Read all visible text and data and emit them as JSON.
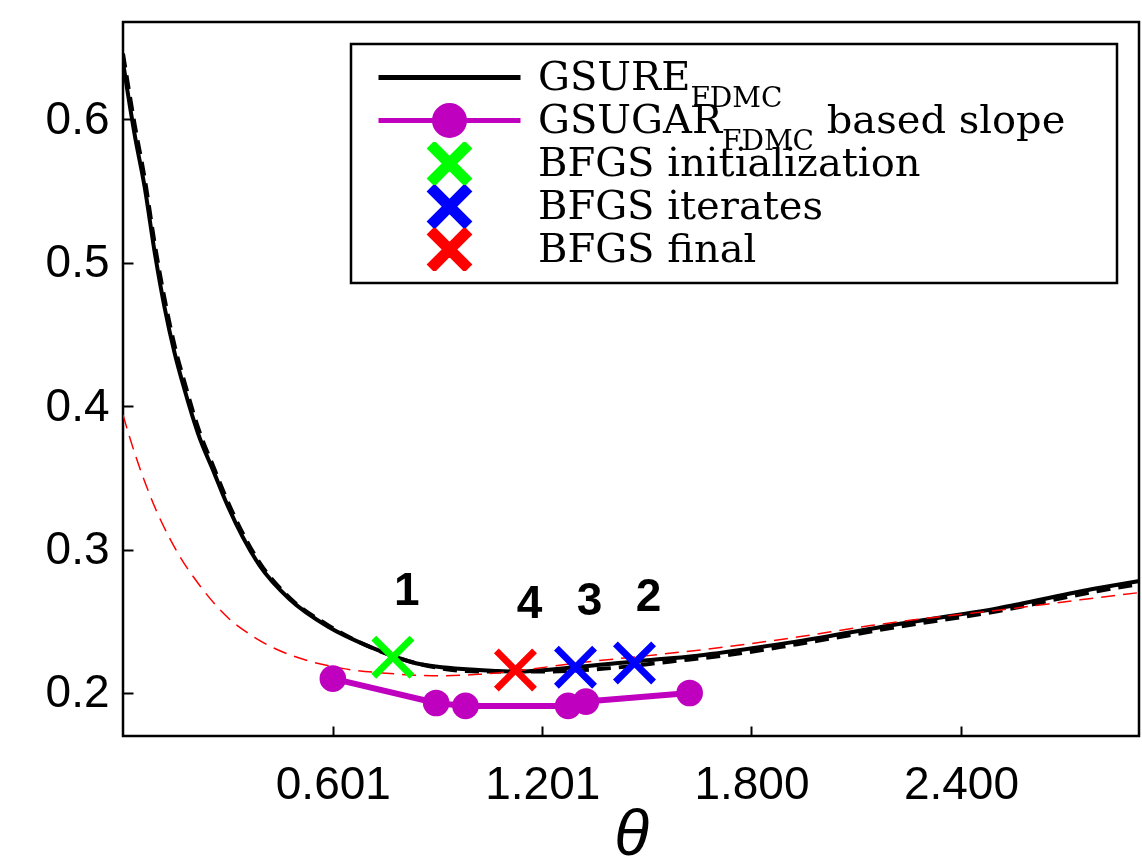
{
  "chart_data": {
    "type": "line",
    "xlabel": "θ",
    "xlim": [
      0,
      2.91
    ],
    "ylim": [
      0.17,
      0.668
    ],
    "xticks": [
      0.601,
      1.201,
      {
        "value": 1.8,
        "label": "1.800"
      },
      {
        "value": 2.4,
        "label": "2.400"
      }
    ],
    "yticks": [
      0.2,
      0.3,
      0.4,
      0.5,
      0.6
    ],
    "legend": "top right",
    "series": [
      {
        "name": "GSURE$_{FDMC}$",
        "color": "#000000",
        "line_style": "solid",
        "x": [
          0,
          0.033,
          0.062,
          0.091,
          0.119,
          0.148,
          0.177,
          0.215,
          0.262,
          0.292,
          0.391,
          0.479,
          0.589,
          0.699,
          0.853,
          1.018,
          1.128,
          1.296,
          1.465,
          1.645,
          1.931,
          2.217,
          2.504,
          2.79,
          2.91
        ],
        "values": [
          0.64,
          0.59,
          0.553,
          0.507,
          0.469,
          0.437,
          0.411,
          0.381,
          0.353,
          0.335,
          0.289,
          0.265,
          0.246,
          0.233,
          0.22,
          0.216,
          0.215,
          0.218,
          0.222,
          0.226,
          0.236,
          0.248,
          0.259,
          0.273,
          0.278
        ]
      },
      {
        "color": "#000000",
        "line_style": "dashed",
        "x": [
          0,
          0.033,
          0.062,
          0.091,
          0.119,
          0.148,
          0.177,
          0.215,
          0.262,
          0.292,
          0.391,
          0.479,
          0.589,
          0.699,
          0.853,
          1.018,
          1.21,
          1.38,
          1.57,
          1.72,
          1.931,
          2.217,
          2.504,
          2.79,
          2.91
        ],
        "values": [
          0.646,
          0.597,
          0.559,
          0.513,
          0.475,
          0.442,
          0.416,
          0.385,
          0.356,
          0.338,
          0.291,
          0.266,
          0.247,
          0.233,
          0.22,
          0.215,
          0.215,
          0.217,
          0.222,
          0.226,
          0.234,
          0.246,
          0.257,
          0.271,
          0.276
        ]
      },
      {
        "color": "#ff0000",
        "line_style": "dashed",
        "x": [
          0,
          0.017,
          0.082,
          0.149,
          0.226,
          0.303,
          0.369,
          0.435,
          0.523,
          0.632,
          0.743,
          0.908,
          1.018,
          1.34,
          1.54,
          1.722,
          1.931,
          2.141,
          2.265,
          2.551,
          2.742,
          2.91
        ],
        "values": [
          0.394,
          0.38,
          0.335,
          0.301,
          0.273,
          0.252,
          0.24,
          0.231,
          0.223,
          0.217,
          0.214,
          0.212,
          0.213,
          0.222,
          0.227,
          0.232,
          0.239,
          0.247,
          0.251,
          0.259,
          0.265,
          0.27
        ]
      },
      {
        "name": "GSUGAR$_{FDMC}$ based slope",
        "color": "#bf00bf",
        "marker": "circle",
        "x": [
          0.601,
          0.897,
          0.981,
          1.275,
          1.326,
          1.623
        ],
        "values": [
          0.21,
          0.193,
          0.191,
          0.191,
          0.194,
          0.2
        ]
      },
      {
        "name": "BFGS initialization",
        "type": "scatter",
        "color": "#00ff00",
        "marker": "cross",
        "x": [
          0.773
        ],
        "values": [
          0.225
        ]
      },
      {
        "name": "BFGS iterates",
        "type": "scatter",
        "color": "#0000ff",
        "marker": "cross",
        "x": [
          1.465,
          1.296
        ],
        "values": [
          0.221,
          0.218
        ]
      },
      {
        "name": "BFGS final",
        "type": "scatter",
        "color": "#ff0000",
        "marker": "cross",
        "x": [
          1.124
        ],
        "values": [
          0.216
        ]
      }
    ],
    "annotations": [
      {
        "text": "1",
        "x": 0.773,
        "y": 0.225
      },
      {
        "text": "4",
        "x": 1.124,
        "y": 0.216
      },
      {
        "text": "3",
        "x": 1.296,
        "y": 0.218
      },
      {
        "text": "2",
        "x": 1.465,
        "y": 0.221
      }
    ]
  }
}
